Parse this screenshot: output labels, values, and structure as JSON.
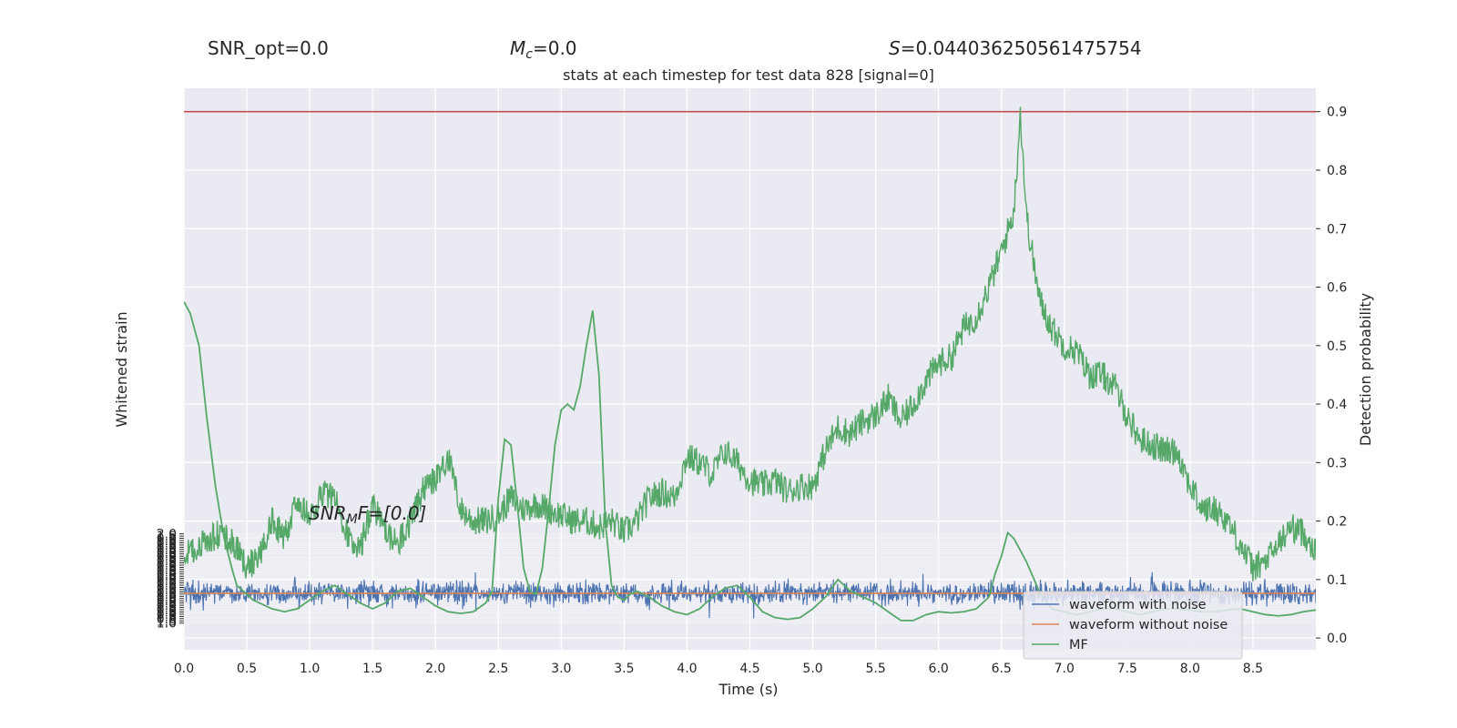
{
  "header": {
    "snr_opt": "SNR_opt=0.0",
    "mc": "=0.0",
    "mc_symbol": "M",
    "mc_sub": "c",
    "s_symbol": "S",
    "s_value": "=0.044036250561475754"
  },
  "chart_data": {
    "type": "line",
    "title": "stats at each timestep for test data 828 [signal=0]",
    "xlabel": "Time (s)",
    "ylabel_left": "Whitened strain",
    "ylabel_right": "Detection probability",
    "xlim": [
      0.0,
      9.0
    ],
    "ylim_right": [
      -0.02,
      0.94
    ],
    "ylim_left": [
      -1.1,
      2.05
    ],
    "x_ticks": [
      "0.0",
      "0.5",
      "1.0",
      "1.5",
      "2.0",
      "2.5",
      "3.0",
      "3.5",
      "4.0",
      "4.5",
      "5.0",
      "5.5",
      "6.0",
      "6.5",
      "7.0",
      "7.5",
      "8.0",
      "8.5"
    ],
    "y_ticks_right": [
      "0.0",
      "0.1",
      "0.2",
      "0.3",
      "0.4",
      "0.5",
      "0.6",
      "0.7",
      "0.8",
      "0.9"
    ],
    "y_ticks_left_top": "2.0",
    "y_ticks_left_bottom": "1.0",
    "threshold": {
      "value": 0.9,
      "color": "#c44e52"
    },
    "annotation": {
      "prefix": "SNR",
      "sub": "M",
      "suffix": "F=[0.0]"
    },
    "legend_placement": "lower-right",
    "series": [
      {
        "name": "waveform with noise",
        "color": "#4c72b0",
        "axis": "left",
        "noise_amplitude": 0.25
      },
      {
        "name": "waveform without noise",
        "color": "#dd8452",
        "axis": "left",
        "values": [
          0.0
        ]
      },
      {
        "name": "MF",
        "color": "#55a868",
        "axis": "right",
        "x": [
          0.0,
          0.05,
          0.12,
          0.18,
          0.25,
          0.32,
          0.38,
          0.42,
          0.5,
          0.55,
          0.6,
          0.7,
          0.8,
          0.9,
          1.0,
          1.1,
          1.2,
          1.3,
          1.4,
          1.5,
          1.6,
          1.7,
          1.8,
          1.9,
          2.0,
          2.1,
          2.2,
          2.3,
          2.4,
          2.45,
          2.5,
          2.55,
          2.6,
          2.65,
          2.7,
          2.75,
          2.8,
          2.85,
          2.9,
          2.95,
          3.0,
          3.05,
          3.1,
          3.15,
          3.2,
          3.25,
          3.3,
          3.35,
          3.4,
          3.45,
          3.5,
          3.55,
          3.6,
          3.7,
          3.8,
          3.9,
          4.0,
          4.1,
          4.2,
          4.3,
          4.4,
          4.5,
          4.6,
          4.7,
          4.8,
          4.9,
          5.0,
          5.1,
          5.2,
          5.3,
          5.4,
          5.5,
          5.6,
          5.7,
          5.8,
          5.9,
          6.0,
          6.1,
          6.2,
          6.3,
          6.4,
          6.45,
          6.5,
          6.55,
          6.6,
          6.7,
          6.8,
          6.9,
          7.0,
          7.1,
          7.2,
          7.3,
          7.4,
          7.5,
          7.6,
          7.7,
          7.8,
          7.9,
          8.0,
          8.1,
          8.2,
          8.3,
          8.4,
          8.5,
          8.6,
          8.7,
          8.8,
          8.9,
          9.0
        ],
        "values": [
          0.575,
          0.555,
          0.5,
          0.38,
          0.26,
          0.17,
          0.12,
          0.09,
          0.075,
          0.065,
          0.06,
          0.05,
          0.045,
          0.05,
          0.065,
          0.08,
          0.09,
          0.075,
          0.06,
          0.05,
          0.06,
          0.08,
          0.085,
          0.07,
          0.055,
          0.045,
          0.042,
          0.045,
          0.06,
          0.08,
          0.24,
          0.34,
          0.33,
          0.23,
          0.12,
          0.08,
          0.075,
          0.12,
          0.22,
          0.33,
          0.39,
          0.4,
          0.39,
          0.43,
          0.5,
          0.56,
          0.45,
          0.2,
          0.09,
          0.07,
          0.065,
          0.075,
          0.08,
          0.07,
          0.055,
          0.045,
          0.04,
          0.05,
          0.07,
          0.085,
          0.09,
          0.07,
          0.045,
          0.035,
          0.032,
          0.035,
          0.05,
          0.07,
          0.1,
          0.08,
          0.07,
          0.06,
          0.045,
          0.03,
          0.03,
          0.04,
          0.045,
          0.043,
          0.045,
          0.05,
          0.07,
          0.11,
          0.14,
          0.18,
          0.17,
          0.13,
          0.08,
          0.05,
          0.045,
          0.04,
          0.045,
          0.05,
          0.05,
          0.045,
          0.04,
          0.045,
          0.05,
          0.05,
          0.048,
          0.045,
          0.045,
          0.048,
          0.05,
          0.045,
          0.04,
          0.038,
          0.04,
          0.045,
          0.048
        ]
      },
      {
        "name": "detection probability",
        "color": "#55a868",
        "axis": "right",
        "x": [
          0.0,
          0.1,
          0.2,
          0.3,
          0.4,
          0.5,
          0.6,
          0.7,
          0.8,
          0.9,
          1.0,
          1.1,
          1.2,
          1.3,
          1.4,
          1.5,
          1.6,
          1.7,
          1.8,
          1.9,
          2.0,
          2.1,
          2.2,
          2.3,
          2.4,
          2.5,
          2.6,
          2.7,
          2.8,
          2.9,
          3.0,
          3.1,
          3.2,
          3.3,
          3.4,
          3.5,
          3.6,
          3.7,
          3.8,
          3.9,
          4.0,
          4.1,
          4.2,
          4.3,
          4.4,
          4.5,
          4.6,
          4.7,
          4.8,
          4.9,
          5.0,
          5.1,
          5.2,
          5.3,
          5.4,
          5.5,
          5.6,
          5.7,
          5.8,
          5.9,
          6.0,
          6.1,
          6.2,
          6.3,
          6.4,
          6.5,
          6.6,
          6.65,
          6.7,
          6.8,
          6.9,
          7.0,
          7.1,
          7.2,
          7.3,
          7.4,
          7.5,
          7.6,
          7.7,
          7.8,
          7.9,
          8.0,
          8.1,
          8.2,
          8.3,
          8.4,
          8.5,
          8.6,
          8.7,
          8.8,
          8.9,
          9.0
        ],
        "values": [
          0.14,
          0.15,
          0.17,
          0.18,
          0.16,
          0.12,
          0.14,
          0.2,
          0.17,
          0.24,
          0.2,
          0.25,
          0.24,
          0.18,
          0.15,
          0.23,
          0.18,
          0.16,
          0.2,
          0.25,
          0.27,
          0.31,
          0.22,
          0.2,
          0.2,
          0.21,
          0.24,
          0.22,
          0.23,
          0.22,
          0.21,
          0.2,
          0.2,
          0.19,
          0.2,
          0.18,
          0.2,
          0.24,
          0.25,
          0.24,
          0.31,
          0.3,
          0.28,
          0.32,
          0.3,
          0.27,
          0.26,
          0.27,
          0.25,
          0.26,
          0.26,
          0.32,
          0.36,
          0.35,
          0.37,
          0.38,
          0.41,
          0.37,
          0.4,
          0.44,
          0.47,
          0.48,
          0.53,
          0.55,
          0.6,
          0.66,
          0.73,
          0.9,
          0.72,
          0.58,
          0.53,
          0.5,
          0.49,
          0.45,
          0.45,
          0.43,
          0.38,
          0.34,
          0.33,
          0.32,
          0.32,
          0.26,
          0.22,
          0.22,
          0.2,
          0.16,
          0.12,
          0.13,
          0.16,
          0.19,
          0.18,
          0.15
        ]
      }
    ]
  }
}
